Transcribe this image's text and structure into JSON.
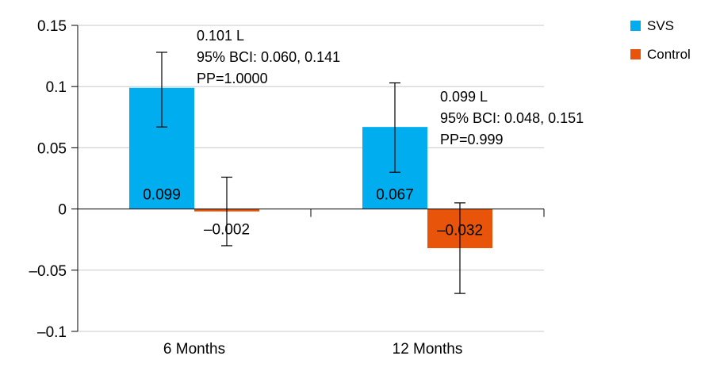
{
  "chart_data": {
    "type": "bar",
    "categories": [
      "6 Months",
      "12 Months"
    ],
    "series": [
      {
        "name": "SVS",
        "color": "#00AEEF",
        "values": [
          0.099,
          0.067
        ],
        "value_labels": [
          "0.099",
          "0.067"
        ],
        "error_low": [
          0.067,
          0.03
        ],
        "error_high": [
          0.128,
          0.103
        ]
      },
      {
        "name": "Control",
        "color": "#E8540A",
        "values": [
          -0.002,
          -0.032
        ],
        "value_labels": [
          "–0.002",
          "–0.032"
        ],
        "error_low": [
          -0.03,
          -0.069
        ],
        "error_high": [
          0.026,
          0.005
        ]
      }
    ],
    "ylim": [
      -0.1,
      0.15
    ],
    "yticks": [
      {
        "value": 0.15,
        "label": "0.15"
      },
      {
        "value": 0.1,
        "label": "0.1"
      },
      {
        "value": 0.05,
        "label": "0.05"
      },
      {
        "value": 0,
        "label": "0"
      },
      {
        "value": -0.05,
        "label": "–0.05"
      },
      {
        "value": -0.1,
        "label": "–0.1"
      }
    ],
    "grid": true,
    "legend_position": "top-right",
    "annotations": [
      {
        "category": "6 Months",
        "lines": [
          "0.101 L",
          "95% BCI: 0.060, 0.141",
          "PP=1.0000"
        ]
      },
      {
        "category": "12 Months",
        "lines": [
          "0.099 L",
          "95% BCI: 0.048, 0.151",
          "PP=0.999"
        ]
      }
    ]
  }
}
